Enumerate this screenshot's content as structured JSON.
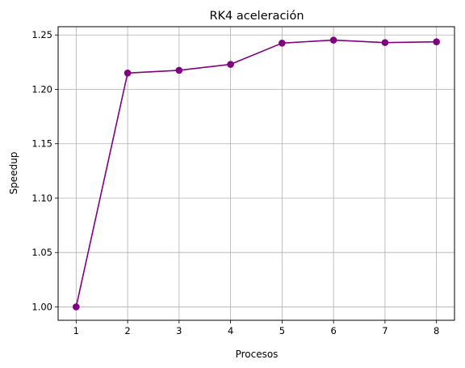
{
  "chart_data": {
    "type": "line",
    "title": "RK4 aceleración",
    "xlabel": "Procesos",
    "ylabel": "Speedup",
    "x": [
      1,
      2,
      3,
      4,
      5,
      6,
      7,
      8
    ],
    "series": [
      {
        "values": [
          1.0,
          1.215,
          1.2175,
          1.223,
          1.2425,
          1.2453,
          1.243,
          1.2437
        ],
        "color": "#800080",
        "marker": "circle"
      }
    ],
    "xticks": [
      "1",
      "2",
      "3",
      "4",
      "5",
      "6",
      "7",
      "8"
    ],
    "yticks": [
      "1.00",
      "1.05",
      "1.10",
      "1.15",
      "1.20",
      "1.25"
    ],
    "xlim": [
      0.65,
      8.35
    ],
    "ylim": [
      0.9877,
      1.2576
    ],
    "grid": true,
    "grid_color": "#b0b0b0",
    "legend": false
  }
}
